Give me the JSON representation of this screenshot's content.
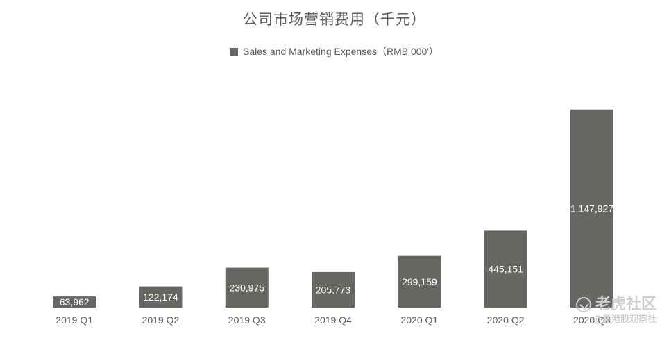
{
  "chart_data": {
    "type": "bar",
    "title": "公司市场营销费用（千元）",
    "categories": [
      "2019 Q1",
      "2019 Q2",
      "2019 Q3",
      "2019 Q4",
      "2020 Q1",
      "2020 Q2",
      "2020 Q3"
    ],
    "series": [
      {
        "name": "Sales and Marketing Expenses（RMB 000'）",
        "values": [
          63962,
          122174,
          230975,
          205773,
          299159,
          445151,
          1147927
        ],
        "labels": [
          "63,962",
          "122,174",
          "230,975",
          "205,773",
          "299,159",
          "445,151",
          "1,147,927"
        ]
      }
    ],
    "xlabel": "",
    "ylabel": "",
    "ylim": [
      0,
      1300000
    ],
    "grid": false,
    "legend_position": "top-center",
    "colors": {
      "bar": "#676662",
      "label_text": "#ffffff",
      "text": "#595959"
    }
  },
  "watermark": {
    "main": "老虎社区",
    "sub": "@美港股观察社"
  }
}
